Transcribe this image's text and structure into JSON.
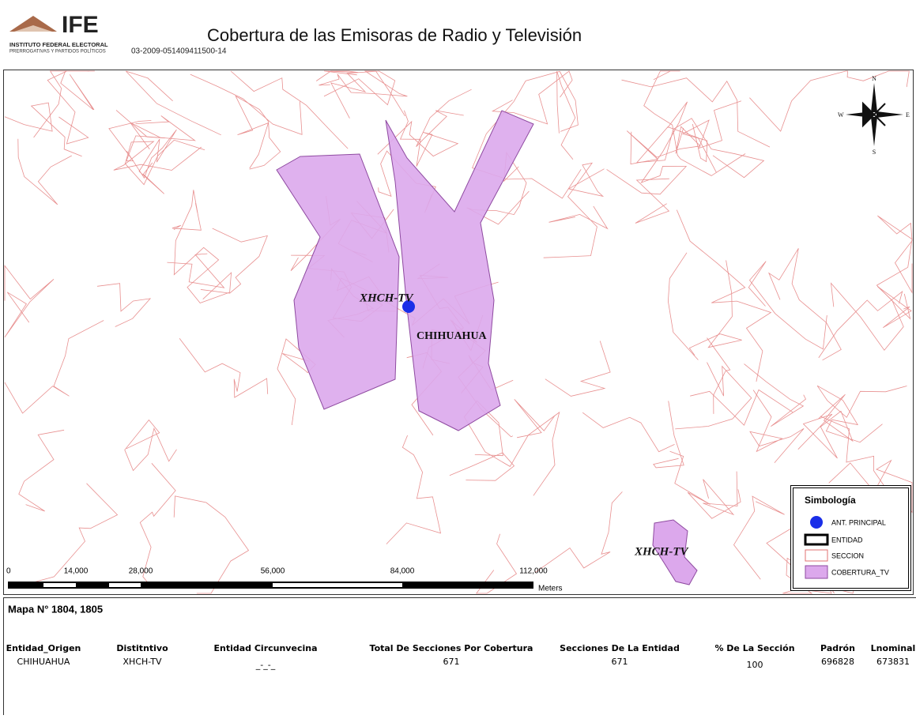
{
  "header": {
    "logo": "IFE",
    "institute": "INSTITUTO FEDERAL ELECTORAL",
    "department": "PRERROGATIVAS Y PARTIDOS POLÍTICOS",
    "code": "03-2009-051409411500-14",
    "title": "Cobertura de las Emisoras de Radio y Televisión"
  },
  "map": {
    "labels": [
      "XHCH-TV",
      "CHIHUAHUA",
      "XHCH-TV"
    ],
    "compass": {
      "n": "N",
      "w": "W",
      "e": "E",
      "s": "S"
    },
    "scale": {
      "labels": [
        "0",
        "14,000",
        "28,000",
        "56,000",
        "84,000",
        "112,000"
      ],
      "unit": "Meters"
    },
    "legend": {
      "title": "Simbología",
      "items": [
        "ANT. PRINCIPAL",
        "ENTIDAD",
        "SECCION",
        "COBERTURA_TV"
      ]
    }
  },
  "footer": {
    "map_number": "Mapa N° 1804, 1805",
    "table": {
      "headers": [
        "Entidad_Origen",
        "Distitntivo",
        "Entidad Circunvecina",
        "Total De Secciones Por Cobertura",
        "Secciones De La Entidad",
        "% De La Sección",
        "Padrón",
        "Lnominal"
      ],
      "rows": [
        [
          "CHIHUAHUA",
          "XHCH-TV",
          "_-_-_",
          671,
          671,
          100,
          696828,
          673831
        ]
      ]
    }
  }
}
